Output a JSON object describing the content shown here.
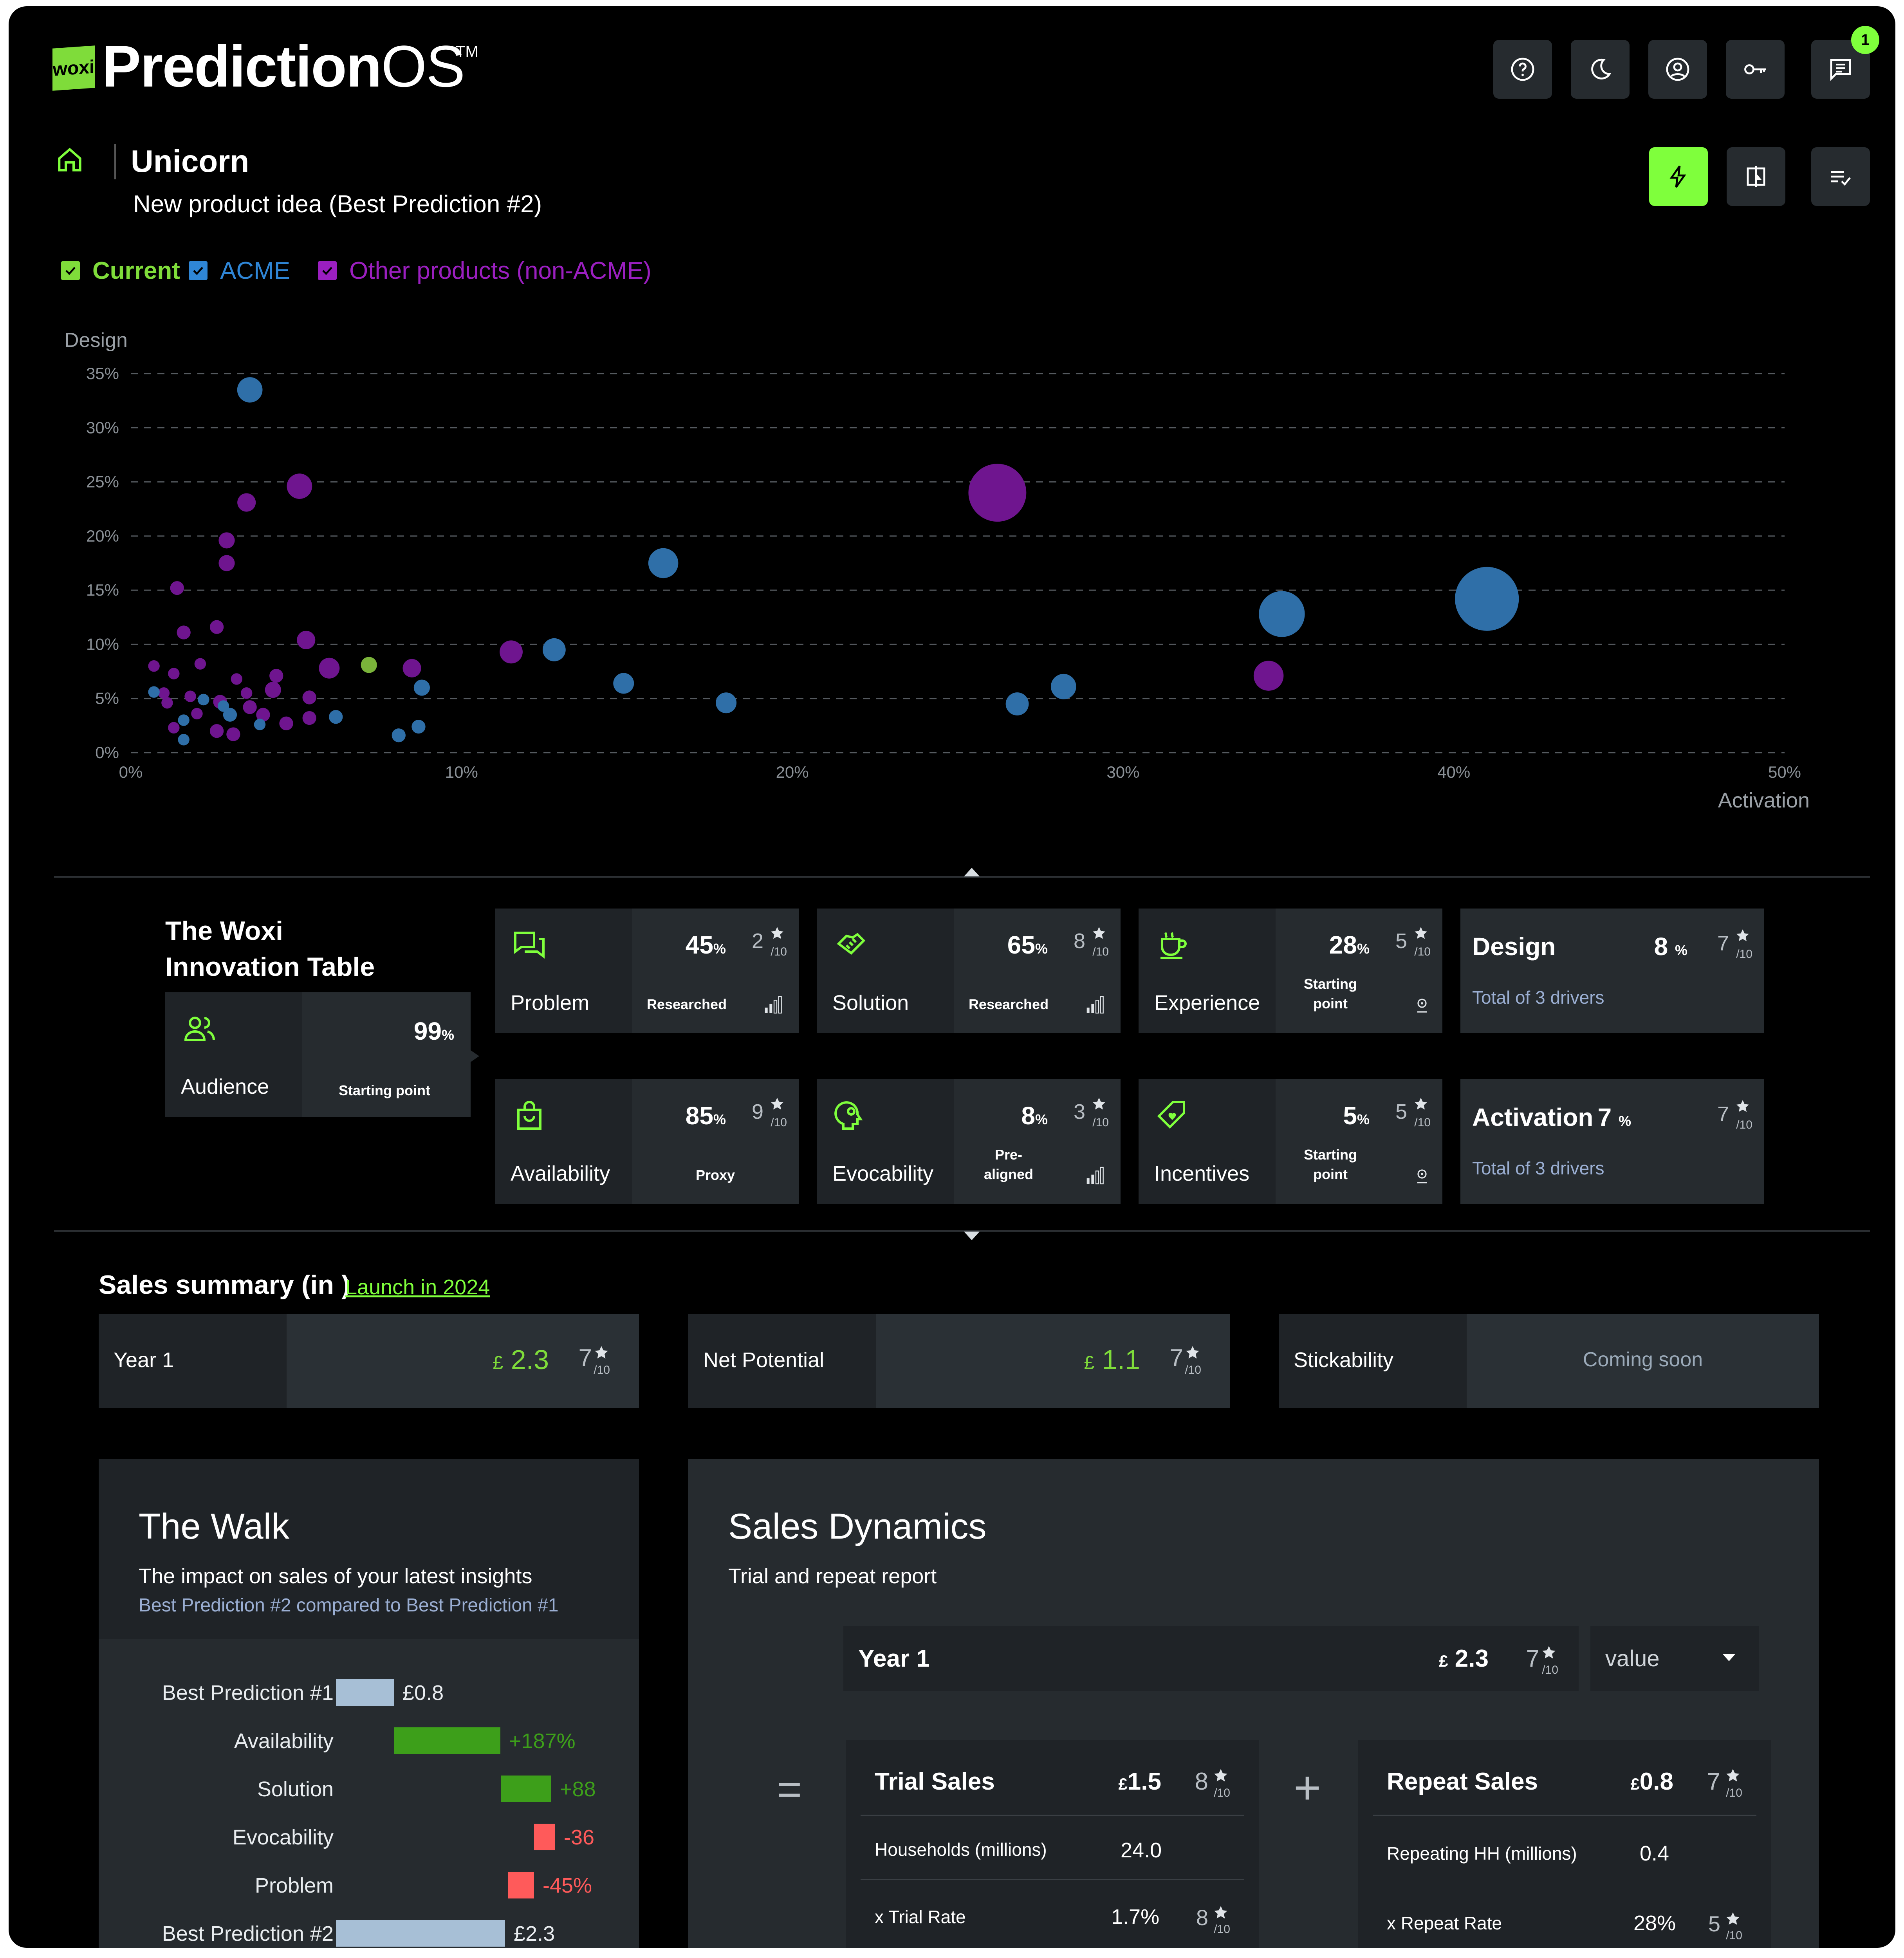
{
  "app": {
    "logo_mark": "woxi",
    "logo_bold": "Prediction",
    "logo_thin": "OS",
    "logo_tm": "TM"
  },
  "header": {
    "notification_count": "1"
  },
  "project": {
    "title": "Unicorn",
    "subtitle": "New product idea (Best Prediction #2)"
  },
  "legend": [
    {
      "label": "Current",
      "color": "#7fdc3a"
    },
    {
      "label": "ACME",
      "color": "#2f86d6"
    },
    {
      "label": "Other products (non-ACME)",
      "color": "#9b1fc0"
    }
  ],
  "chart_data": {
    "type": "scatter",
    "ylabel": "Design",
    "xlabel": "Activation",
    "xlim": [
      0,
      50
    ],
    "ylim": [
      0,
      35
    ],
    "x_ticks": [
      "0%",
      "10%",
      "20%",
      "30%",
      "40%",
      "50%"
    ],
    "y_ticks": [
      "0%",
      "5%",
      "10%",
      "15%",
      "20%",
      "25%",
      "30%",
      "35%"
    ],
    "grid": true,
    "series": [
      {
        "name": "Current",
        "color": "#7ab33a",
        "points": [
          [
            7.2,
            8.1,
            7
          ]
        ]
      },
      {
        "name": "ACME",
        "color": "#2f6fa8",
        "points": [
          [
            3.6,
            33.5,
            11
          ],
          [
            16.1,
            17.5,
            13
          ],
          [
            12.8,
            9.5,
            10
          ],
          [
            8.8,
            6.0,
            7
          ],
          [
            14.9,
            6.4,
            9
          ],
          [
            18.0,
            4.6,
            9
          ],
          [
            26.8,
            4.5,
            10
          ],
          [
            28.2,
            6.1,
            11
          ],
          [
            34.8,
            12.8,
            23
          ],
          [
            41.0,
            14.2,
            32
          ],
          [
            8.7,
            2.4,
            6
          ],
          [
            8.1,
            1.6,
            6
          ],
          [
            6.2,
            3.3,
            6
          ],
          [
            3.0,
            3.5,
            6
          ],
          [
            3.9,
            2.6,
            5
          ],
          [
            1.6,
            3.0,
            5
          ],
          [
            2.8,
            4.3,
            5
          ],
          [
            0.7,
            5.6,
            5
          ],
          [
            2.2,
            4.9,
            5
          ],
          [
            1.6,
            1.2,
            5
          ]
        ]
      },
      {
        "name": "Other products (non-ACME)",
        "color": "#6f158f",
        "points": [
          [
            26.2,
            24.0,
            29
          ],
          [
            34.4,
            7.1,
            13
          ],
          [
            5.1,
            24.6,
            11
          ],
          [
            3.5,
            23.1,
            8
          ],
          [
            2.9,
            19.6,
            7
          ],
          [
            2.9,
            17.5,
            7
          ],
          [
            1.4,
            15.2,
            6
          ],
          [
            1.6,
            11.1,
            6
          ],
          [
            2.6,
            11.6,
            6
          ],
          [
            5.3,
            10.4,
            8
          ],
          [
            6.0,
            7.8,
            9
          ],
          [
            8.5,
            7.8,
            8
          ],
          [
            11.5,
            9.3,
            10
          ],
          [
            0.7,
            8.0,
            5
          ],
          [
            1.3,
            7.3,
            5
          ],
          [
            2.1,
            8.2,
            5
          ],
          [
            3.2,
            6.8,
            5
          ],
          [
            4.4,
            7.1,
            6
          ],
          [
            1.0,
            5.5,
            5
          ],
          [
            1.8,
            5.2,
            5
          ],
          [
            4.3,
            5.8,
            7
          ],
          [
            5.4,
            5.1,
            6
          ],
          [
            2.7,
            4.7,
            6
          ],
          [
            3.6,
            4.2,
            6
          ],
          [
            2.0,
            3.6,
            5
          ],
          [
            4.0,
            3.5,
            6
          ],
          [
            5.4,
            3.2,
            6
          ],
          [
            1.3,
            2.3,
            5
          ],
          [
            2.6,
            2.0,
            6
          ],
          [
            3.1,
            1.7,
            6
          ],
          [
            4.7,
            2.7,
            6
          ],
          [
            1.1,
            4.6,
            5
          ],
          [
            3.5,
            5.5,
            5
          ]
        ]
      }
    ]
  },
  "innovation_table": {
    "title_line1": "The Woxi",
    "title_line2": "Innovation Table",
    "audience": {
      "name": "Audience",
      "pct": "99",
      "pct_unit": "%",
      "tag": "Starting point"
    },
    "cards": [
      {
        "name": "Problem",
        "pct": "45",
        "unit": "%",
        "score": "2",
        "tag_l1": "Researched",
        "tag_l2": "",
        "icon": "chat-icon",
        "status": "signal-icon"
      },
      {
        "name": "Solution",
        "pct": "65",
        "unit": "%",
        "score": "8",
        "tag_l1": "Researched",
        "tag_l2": "",
        "icon": "handshake-icon",
        "status": "signal-icon"
      },
      {
        "name": "Experience",
        "pct": "28",
        "unit": "%",
        "score": "5",
        "tag_l1": "Starting",
        "tag_l2": "point",
        "icon": "cup-icon",
        "status": "pin-icon"
      },
      {
        "name": "Availability",
        "pct": "85",
        "unit": "%",
        "score": "9",
        "tag_l1": "Proxy",
        "tag_l2": "",
        "icon": "bag-icon",
        "status": ""
      },
      {
        "name": "Evocability",
        "pct": "8",
        "unit": "%",
        "score": "3",
        "tag_l1": "Pre-",
        "tag_l2": "aligned",
        "icon": "head-icon",
        "status": "signal-icon"
      },
      {
        "name": "Incentives",
        "pct": "5",
        "unit": "%",
        "score": "5",
        "tag_l1": "Starting",
        "tag_l2": "point",
        "icon": "tag-icon",
        "status": "pin-icon"
      }
    ],
    "design": {
      "name": "Design",
      "pct": "8",
      "unit": "%",
      "score": "7",
      "total": "Total of 3 drivers"
    },
    "activation": {
      "name": "Activation",
      "pct": "7",
      "unit": "%",
      "score": "7",
      "total": "Total of 3 drivers"
    },
    "score_denominator": "/10"
  },
  "sales_summary": {
    "title": "Sales summary (in )",
    "link": "Launch in 2024",
    "cards": [
      {
        "label": "Year 1",
        "currency": "£",
        "value": "2.3",
        "score": "7"
      },
      {
        "label": "Net Potential",
        "currency": "£",
        "value": "1.1",
        "score": "7"
      },
      {
        "label": "Stickability",
        "coming_soon": "Coming soon"
      }
    ]
  },
  "walk": {
    "title": "The Walk",
    "subtitle": "The impact on sales of your latest insights",
    "compare": "Best Prediction #2 compared to Best Prediction #1",
    "rows": [
      {
        "label": "Best Prediction #1",
        "value": "£0.8",
        "kind": "total"
      },
      {
        "label": "Availability",
        "value": "+187%",
        "kind": "up"
      },
      {
        "label": "Solution",
        "value": "+88",
        "kind": "up"
      },
      {
        "label": "Evocability",
        "value": "-36",
        "kind": "down"
      },
      {
        "label": "Problem",
        "value": "-45%",
        "kind": "down"
      },
      {
        "label": "Best Prediction #2",
        "value": "£2.3",
        "kind": "total"
      }
    ]
  },
  "dynamics": {
    "title": "Sales Dynamics",
    "subtitle": "Trial and repeat report",
    "year": {
      "label": "Year 1",
      "currency": "£",
      "value": "2.3",
      "score": "7"
    },
    "select_value": "value",
    "equals": "=",
    "plus": "+",
    "trial": {
      "label": "Trial Sales",
      "currency": "£",
      "value": "1.5",
      "score": "8",
      "rows": [
        {
          "label": "Households (millions)",
          "value": "24.0",
          "score": ""
        },
        {
          "label": "x Trial Rate",
          "value": "1.7%",
          "score": "8"
        }
      ]
    },
    "repeat": {
      "label": "Repeat Sales",
      "currency": "£",
      "value": "0.8",
      "score": "7",
      "rows": [
        {
          "label": "Repeating HH (millions)",
          "value": "0.4",
          "score": ""
        },
        {
          "label": "x Repeat Rate",
          "value": "28%",
          "score": "5"
        }
      ]
    }
  }
}
